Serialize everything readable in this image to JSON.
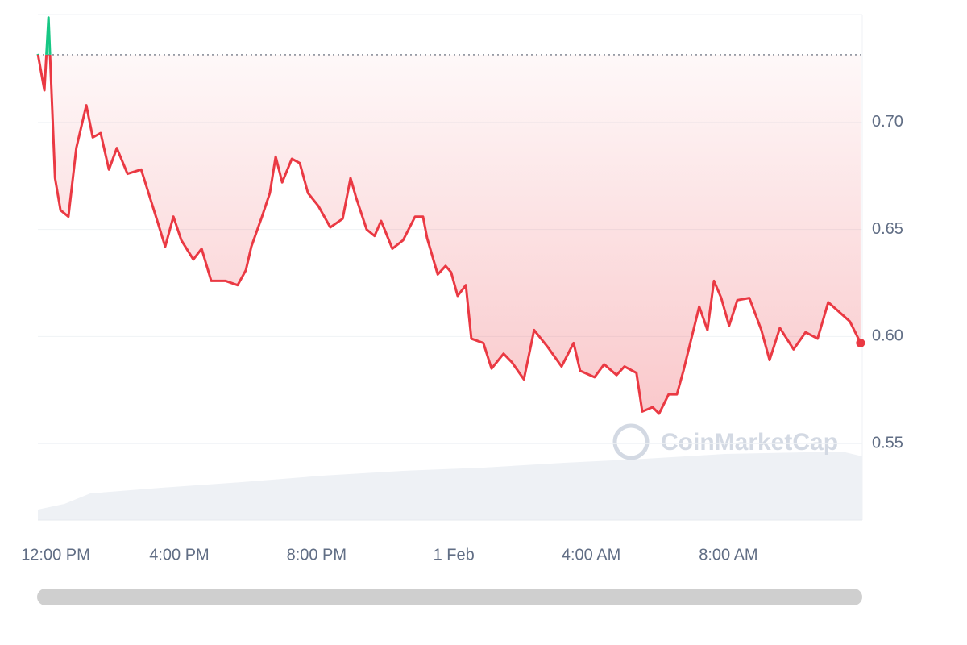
{
  "chart_data": {
    "type": "line",
    "watermark": "CoinMarketCap",
    "x": [
      -0.12,
      0.07,
      0.19,
      0.38,
      0.54,
      0.77,
      1.0,
      1.29,
      1.48,
      1.71,
      1.95,
      2.18,
      2.49,
      2.89,
      3.36,
      3.59,
      3.83,
      4.06,
      4.41,
      4.65,
      4.93,
      5.35,
      5.7,
      5.94,
      6.1,
      6.41,
      6.64,
      6.81,
      7.0,
      7.28,
      7.51,
      7.75,
      8.05,
      8.4,
      8.76,
      8.99,
      9.15,
      9.46,
      9.69,
      9.88,
      10.21,
      10.52,
      10.87,
      11.1,
      11.22,
      11.53,
      11.76,
      11.92,
      12.11,
      12.35,
      12.51,
      12.86,
      13.1,
      13.45,
      13.69,
      14.04,
      14.34,
      14.74,
      15.14,
      15.49,
      15.68,
      16.1,
      16.38,
      16.74,
      16.97,
      17.32,
      17.49,
      17.79,
      17.98,
      18.26,
      18.5,
      18.69,
      18.92,
      19.15,
      19.39,
      19.58,
      19.79,
      20.02,
      20.26,
      20.61,
      20.96,
      21.2,
      21.5,
      21.9,
      22.25,
      22.6,
      22.91,
      23.19,
      23.54,
      23.85
    ],
    "values": [
      0.732,
      0.715,
      0.749,
      0.674,
      0.659,
      0.656,
      0.688,
      0.708,
      0.693,
      0.695,
      0.678,
      0.688,
      0.676,
      0.678,
      0.654,
      0.642,
      0.656,
      0.645,
      0.636,
      0.641,
      0.626,
      0.626,
      0.624,
      0.631,
      0.642,
      0.656,
      0.667,
      0.684,
      0.672,
      0.683,
      0.681,
      0.667,
      0.661,
      0.651,
      0.655,
      0.674,
      0.665,
      0.65,
      0.647,
      0.654,
      0.641,
      0.645,
      0.656,
      0.656,
      0.646,
      0.629,
      0.633,
      0.63,
      0.619,
      0.624,
      0.599,
      0.597,
      0.585,
      0.592,
      0.588,
      0.58,
      0.603,
      0.595,
      0.586,
      0.597,
      0.584,
      0.581,
      0.587,
      0.582,
      0.586,
      0.583,
      0.565,
      0.567,
      0.564,
      0.573,
      0.573,
      0.584,
      0.599,
      0.614,
      0.603,
      0.626,
      0.618,
      0.605,
      0.617,
      0.618,
      0.603,
      0.589,
      0.604,
      0.594,
      0.602,
      0.599,
      0.616,
      0.612,
      0.607,
      0.597
    ],
    "color": "#ea3943",
    "up_color": "#16c784",
    "baseline": 0.7316,
    "xlim": [
      -0.12,
      23.9
    ],
    "xticks": [
      {
        "value": 0,
        "label": "12:00 PM"
      },
      {
        "value": 4,
        "label": "4:00 PM"
      },
      {
        "value": 8,
        "label": "8:00 PM"
      },
      {
        "value": 12,
        "label": "1 Feb"
      },
      {
        "value": 16,
        "label": "4:00 AM"
      },
      {
        "value": 20,
        "label": "8:00 AM"
      }
    ],
    "ylim": [
      0.5143,
      0.7504
    ],
    "yticks": [
      0.55,
      {
        "value": 0.6,
        "label": "0.60"
      },
      0.65,
      {
        "value": 0.7,
        "label": "0.70"
      }
    ],
    "grid": true
  }
}
